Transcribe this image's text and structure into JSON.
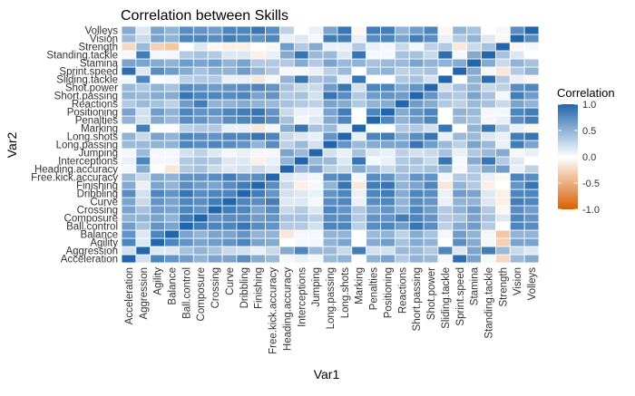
{
  "chart_data": {
    "type": "heatmap",
    "title": "Correlation between Skills",
    "xlabel": "Var1",
    "ylabel": "Var2",
    "x_categories": [
      "Acceleration",
      "Aggression",
      "Agility",
      "Balance",
      "Ball.control",
      "Composure",
      "Crossing",
      "Curve",
      "Dribbling",
      "Finishing",
      "Free.kick.accuracy",
      "Heading.accuracy",
      "Interceptions",
      "Jumping",
      "Long.passing",
      "Long.shots",
      "Marking",
      "Penalties",
      "Positioning",
      "Reactions",
      "Short.passing",
      "Shot.power",
      "Sliding.tackle",
      "Sprint.speed",
      "Stamina",
      "Standing.tackle",
      "Strength",
      "Vision",
      "Volleys"
    ],
    "y_categories": [
      "Acceleration",
      "Aggression",
      "Agility",
      "Balance",
      "Ball.control",
      "Composure",
      "Crossing",
      "Curve",
      "Dribbling",
      "Finishing",
      "Free.kick.accuracy",
      "Heading.accuracy",
      "Interceptions",
      "Jumping",
      "Long.passing",
      "Long.shots",
      "Marking",
      "Penalties",
      "Positioning",
      "Reactions",
      "Short.passing",
      "Shot.power",
      "Sliding.tackle",
      "Sprint.speed",
      "Stamina",
      "Standing.tackle",
      "Strength",
      "Vision",
      "Volleys"
    ],
    "values": [
      [
        1.0,
        0.2,
        0.8,
        0.7,
        0.65,
        0.5,
        0.6,
        0.6,
        0.75,
        0.55,
        0.45,
        0.05,
        0.1,
        0.05,
        0.45,
        0.5,
        0.0,
        0.5,
        0.6,
        0.35,
        0.5,
        0.45,
        0.05,
        0.95,
        0.6,
        0.05,
        -0.25,
        0.45,
        0.55
      ],
      [
        0.2,
        1.0,
        0.15,
        0.15,
        0.4,
        0.5,
        0.4,
        0.25,
        0.2,
        0.1,
        0.25,
        0.55,
        0.8,
        0.45,
        0.45,
        0.25,
        0.85,
        0.2,
        0.2,
        0.45,
        0.45,
        0.35,
        0.8,
        0.15,
        0.6,
        0.85,
        0.45,
        0.25,
        0.15
      ],
      [
        0.8,
        0.15,
        1.0,
        0.8,
        0.7,
        0.6,
        0.65,
        0.7,
        0.8,
        0.6,
        0.55,
        0.0,
        0.05,
        0.05,
        0.5,
        0.6,
        0.0,
        0.55,
        0.65,
        0.4,
        0.55,
        0.5,
        0.0,
        0.75,
        0.55,
        0.05,
        -0.3,
        0.6,
        0.6
      ],
      [
        0.7,
        0.15,
        0.8,
        1.0,
        0.6,
        0.5,
        0.6,
        0.6,
        0.7,
        0.5,
        0.5,
        -0.15,
        0.05,
        0.05,
        0.5,
        0.5,
        0.0,
        0.45,
        0.5,
        0.3,
        0.55,
        0.4,
        0.05,
        0.65,
        0.5,
        0.05,
        -0.35,
        0.5,
        0.5
      ],
      [
        0.65,
        0.4,
        0.7,
        0.6,
        1.0,
        0.85,
        0.8,
        0.8,
        0.9,
        0.75,
        0.7,
        0.35,
        0.35,
        0.2,
        0.8,
        0.8,
        0.3,
        0.75,
        0.8,
        0.65,
        0.9,
        0.75,
        0.3,
        0.55,
        0.65,
        0.35,
        0.0,
        0.8,
        0.75
      ],
      [
        0.5,
        0.5,
        0.6,
        0.5,
        0.85,
        1.0,
        0.7,
        0.75,
        0.75,
        0.65,
        0.7,
        0.4,
        0.4,
        0.3,
        0.75,
        0.75,
        0.35,
        0.7,
        0.7,
        0.85,
        0.8,
        0.7,
        0.35,
        0.4,
        0.6,
        0.4,
        0.15,
        0.8,
        0.7
      ],
      [
        0.6,
        0.4,
        0.65,
        0.6,
        0.8,
        0.7,
        1.0,
        0.85,
        0.8,
        0.6,
        0.75,
        0.25,
        0.35,
        0.15,
        0.8,
        0.7,
        0.35,
        0.6,
        0.7,
        0.5,
        0.8,
        0.65,
        0.35,
        0.5,
        0.65,
        0.35,
        -0.05,
        0.75,
        0.65
      ],
      [
        0.6,
        0.25,
        0.7,
        0.6,
        0.8,
        0.75,
        0.85,
        1.0,
        0.8,
        0.75,
        0.85,
        0.15,
        0.15,
        0.05,
        0.75,
        0.8,
        0.1,
        0.75,
        0.8,
        0.5,
        0.75,
        0.7,
        0.1,
        0.5,
        0.5,
        0.15,
        -0.1,
        0.85,
        0.8
      ],
      [
        0.75,
        0.2,
        0.8,
        0.7,
        0.9,
        0.75,
        0.8,
        0.8,
        1.0,
        0.85,
        0.7,
        0.2,
        0.15,
        0.1,
        0.7,
        0.8,
        0.1,
        0.8,
        0.85,
        0.55,
        0.8,
        0.75,
        0.1,
        0.65,
        0.6,
        0.15,
        -0.1,
        0.8,
        0.8
      ],
      [
        0.55,
        0.1,
        0.6,
        0.5,
        0.75,
        0.65,
        0.6,
        0.75,
        0.85,
        1.0,
        0.75,
        0.25,
        -0.1,
        0.05,
        0.5,
        0.9,
        -0.15,
        0.85,
        0.9,
        0.5,
        0.6,
        0.8,
        -0.15,
        0.5,
        0.35,
        -0.1,
        0.0,
        0.7,
        0.9
      ],
      [
        0.45,
        0.25,
        0.55,
        0.5,
        0.7,
        0.7,
        0.75,
        0.85,
        0.7,
        0.75,
        1.0,
        0.15,
        0.1,
        0.05,
        0.75,
        0.8,
        0.05,
        0.75,
        0.7,
        0.45,
        0.7,
        0.7,
        0.05,
        0.35,
        0.35,
        0.1,
        -0.05,
        0.8,
        0.75
      ],
      [
        0.05,
        0.55,
        0.0,
        -0.15,
        0.35,
        0.4,
        0.25,
        0.15,
        0.2,
        0.25,
        0.15,
        1.0,
        0.5,
        0.6,
        0.3,
        0.25,
        0.55,
        0.4,
        0.25,
        0.4,
        0.35,
        0.4,
        0.5,
        0.05,
        0.35,
        0.55,
        0.65,
        0.1,
        0.3
      ],
      [
        0.1,
        0.8,
        0.05,
        0.05,
        0.35,
        0.4,
        0.35,
        0.15,
        0.15,
        -0.1,
        0.1,
        0.5,
        1.0,
        0.45,
        0.45,
        0.15,
        0.9,
        0.05,
        0.1,
        0.35,
        0.4,
        0.25,
        0.9,
        0.05,
        0.55,
        0.9,
        0.35,
        0.15,
        0.0
      ],
      [
        0.05,
        0.45,
        0.05,
        0.05,
        0.2,
        0.3,
        0.15,
        0.05,
        0.1,
        0.05,
        0.05,
        0.6,
        0.45,
        1.0,
        0.2,
        0.1,
        0.4,
        0.15,
        0.1,
        0.3,
        0.2,
        0.25,
        0.4,
        0.1,
        0.35,
        0.45,
        0.55,
        0.05,
        0.1
      ],
      [
        0.45,
        0.45,
        0.5,
        0.5,
        0.8,
        0.75,
        0.8,
        0.75,
        0.7,
        0.5,
        0.75,
        0.3,
        0.45,
        0.2,
        1.0,
        0.7,
        0.45,
        0.55,
        0.6,
        0.6,
        0.9,
        0.65,
        0.45,
        0.3,
        0.6,
        0.45,
        0.1,
        0.85,
        0.6
      ],
      [
        0.5,
        0.25,
        0.6,
        0.5,
        0.8,
        0.75,
        0.7,
        0.8,
        0.8,
        0.9,
        0.8,
        0.25,
        0.15,
        0.1,
        0.7,
        1.0,
        0.1,
        0.8,
        0.85,
        0.55,
        0.75,
        0.9,
        0.1,
        0.45,
        0.45,
        0.15,
        0.1,
        0.85,
        0.9
      ],
      [
        0.0,
        0.85,
        0.0,
        0.0,
        0.3,
        0.35,
        0.35,
        0.1,
        0.1,
        -0.15,
        0.05,
        0.55,
        0.9,
        0.4,
        0.45,
        0.1,
        1.0,
        0.0,
        0.0,
        0.35,
        0.35,
        0.2,
        0.9,
        0.0,
        0.5,
        0.9,
        0.35,
        0.1,
        -0.05
      ],
      [
        0.5,
        0.2,
        0.55,
        0.45,
        0.75,
        0.7,
        0.6,
        0.75,
        0.8,
        0.85,
        0.75,
        0.4,
        0.05,
        0.15,
        0.55,
        0.8,
        0.0,
        1.0,
        0.8,
        0.5,
        0.65,
        0.8,
        0.0,
        0.45,
        0.4,
        0.05,
        0.1,
        0.75,
        0.85
      ],
      [
        0.6,
        0.2,
        0.65,
        0.5,
        0.8,
        0.7,
        0.7,
        0.8,
        0.85,
        0.9,
        0.7,
        0.25,
        0.1,
        0.1,
        0.6,
        0.85,
        0.0,
        0.8,
        1.0,
        0.55,
        0.7,
        0.8,
        0.0,
        0.5,
        0.45,
        0.05,
        0.05,
        0.8,
        0.85
      ],
      [
        0.35,
        0.45,
        0.4,
        0.3,
        0.65,
        0.85,
        0.5,
        0.5,
        0.55,
        0.5,
        0.45,
        0.4,
        0.35,
        0.3,
        0.6,
        0.55,
        0.35,
        0.5,
        0.55,
        1.0,
        0.65,
        0.55,
        0.35,
        0.3,
        0.45,
        0.4,
        0.25,
        0.6,
        0.5
      ],
      [
        0.5,
        0.45,
        0.55,
        0.55,
        0.9,
        0.8,
        0.8,
        0.75,
        0.8,
        0.6,
        0.7,
        0.35,
        0.4,
        0.2,
        0.9,
        0.75,
        0.35,
        0.65,
        0.7,
        0.65,
        1.0,
        0.7,
        0.4,
        0.35,
        0.6,
        0.4,
        0.05,
        0.85,
        0.65
      ],
      [
        0.45,
        0.35,
        0.5,
        0.4,
        0.75,
        0.7,
        0.65,
        0.7,
        0.75,
        0.8,
        0.7,
        0.4,
        0.25,
        0.25,
        0.65,
        0.9,
        0.2,
        0.8,
        0.8,
        0.55,
        0.7,
        1.0,
        0.2,
        0.4,
        0.5,
        0.25,
        0.3,
        0.75,
        0.8
      ],
      [
        0.05,
        0.8,
        0.0,
        0.05,
        0.3,
        0.35,
        0.35,
        0.1,
        0.1,
        -0.15,
        0.05,
        0.5,
        0.9,
        0.4,
        0.45,
        0.1,
        0.9,
        0.0,
        0.0,
        0.35,
        0.4,
        0.2,
        1.0,
        0.0,
        0.5,
        0.95,
        0.35,
        0.1,
        -0.05
      ],
      [
        0.95,
        0.15,
        0.75,
        0.65,
        0.55,
        0.4,
        0.5,
        0.5,
        0.65,
        0.5,
        0.35,
        0.05,
        0.05,
        0.1,
        0.3,
        0.45,
        0.0,
        0.45,
        0.5,
        0.3,
        0.35,
        0.4,
        0.0,
        1.0,
        0.55,
        0.05,
        -0.15,
        0.35,
        0.5
      ],
      [
        0.6,
        0.6,
        0.55,
        0.5,
        0.65,
        0.6,
        0.65,
        0.5,
        0.6,
        0.35,
        0.35,
        0.35,
        0.55,
        0.35,
        0.6,
        0.45,
        0.5,
        0.4,
        0.45,
        0.45,
        0.6,
        0.5,
        0.5,
        0.55,
        1.0,
        0.55,
        0.25,
        0.5,
        0.4
      ],
      [
        0.05,
        0.85,
        0.05,
        0.05,
        0.35,
        0.4,
        0.35,
        0.15,
        0.15,
        -0.1,
        0.1,
        0.55,
        0.9,
        0.45,
        0.45,
        0.15,
        0.9,
        0.05,
        0.05,
        0.4,
        0.4,
        0.25,
        0.95,
        0.05,
        0.55,
        1.0,
        0.4,
        0.15,
        0.0
      ],
      [
        -0.25,
        0.45,
        -0.3,
        -0.35,
        0.0,
        0.15,
        -0.05,
        -0.1,
        -0.1,
        0.0,
        -0.05,
        0.65,
        0.35,
        0.55,
        0.1,
        0.1,
        0.35,
        0.1,
        0.05,
        0.25,
        0.05,
        0.3,
        0.35,
        -0.15,
        0.25,
        0.4,
        1.0,
        -0.05,
        0.05
      ],
      [
        0.45,
        0.25,
        0.6,
        0.5,
        0.8,
        0.8,
        0.75,
        0.85,
        0.8,
        0.7,
        0.8,
        0.1,
        0.15,
        0.05,
        0.85,
        0.85,
        0.1,
        0.75,
        0.8,
        0.6,
        0.85,
        0.75,
        0.1,
        0.35,
        0.5,
        0.15,
        -0.05,
        1.0,
        0.75
      ],
      [
        0.55,
        0.15,
        0.6,
        0.5,
        0.75,
        0.7,
        0.65,
        0.8,
        0.8,
        0.9,
        0.75,
        0.3,
        0.0,
        0.1,
        0.6,
        0.9,
        -0.05,
        0.85,
        0.85,
        0.5,
        0.65,
        0.8,
        -0.05,
        0.5,
        0.4,
        0.0,
        0.05,
        0.75,
        1.0
      ]
    ],
    "zlim": [
      -1.0,
      1.0
    ],
    "legend": {
      "title": "Correlation",
      "ticks": [
        "1.0",
        "0.5",
        "0.0",
        "-0.5",
        "-1.0"
      ],
      "placement": "right"
    },
    "colors": {
      "high": "#2166ac",
      "mid": "#ffffff",
      "low": "#d95f02",
      "grid": "#ffffff"
    },
    "grid": true
  }
}
